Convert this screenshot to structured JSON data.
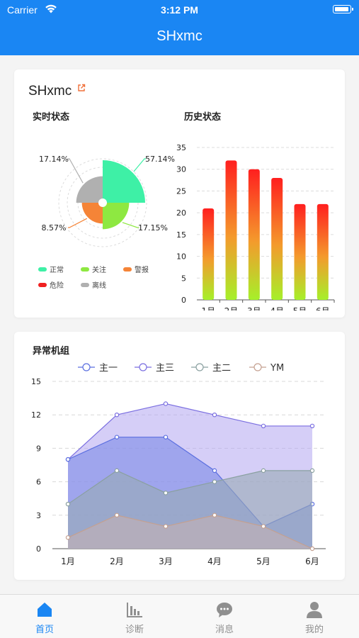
{
  "status_bar": {
    "carrier": "Carrier",
    "time": "3:12 PM"
  },
  "app": {
    "title": "SHxmc"
  },
  "card1": {
    "title": "SHxmc",
    "realtime_title": "实时状态",
    "history_title": "历史状态"
  },
  "card2": {
    "title": "异常机组"
  },
  "chart_data": [
    {
      "type": "pie",
      "title": "实时状态",
      "variant": "rose",
      "slices": [
        {
          "name": "正常",
          "value": 57.14,
          "label": "57.14%",
          "color": "#3ef0a6"
        },
        {
          "name": "关注",
          "value": 17.15,
          "label": "17.15%",
          "color": "#8ee841"
        },
        {
          "name": "警报",
          "value": 8.57,
          "label": "8.57%",
          "color": "#f58437"
        },
        {
          "name": "危险",
          "value": 0,
          "label": "",
          "color": "#f02020"
        },
        {
          "name": "离线",
          "value": 17.14,
          "label": "17.14%",
          "color": "#b0b0b0"
        }
      ],
      "legend": [
        "正常",
        "关注",
        "警报",
        "危险",
        "离线"
      ],
      "legend_position": "bottom"
    },
    {
      "type": "bar",
      "title": "历史状态",
      "categories": [
        "1月",
        "2月",
        "3月",
        "4月",
        "5月",
        "6月"
      ],
      "values": [
        21,
        32,
        30,
        28,
        22,
        22
      ],
      "ylim": [
        0,
        35
      ],
      "yticks": [
        0,
        5,
        10,
        15,
        20,
        25,
        30,
        35
      ],
      "color_top": "#ff1f1f",
      "color_bottom": "#a6f02a",
      "grid": true
    },
    {
      "type": "area",
      "title": "异常机组",
      "categories": [
        "1月",
        "2月",
        "3月",
        "4月",
        "5月",
        "6月"
      ],
      "ylim": [
        0,
        15
      ],
      "yticks": [
        0,
        3,
        6,
        9,
        12,
        15
      ],
      "grid": true,
      "legend_position": "top",
      "series": [
        {
          "name": "主一",
          "values": [
            8,
            10,
            10,
            7,
            2,
            4
          ],
          "color": "#5b6fe0",
          "fill": "#7c8be6"
        },
        {
          "name": "主三",
          "values": [
            8,
            12,
            13,
            12,
            11,
            11
          ],
          "color": "#7a6ee0",
          "fill": "#b2a6f0"
        },
        {
          "name": "主二",
          "values": [
            4,
            7,
            5,
            6,
            7,
            7
          ],
          "color": "#8aa0a0",
          "fill": "#98aab4"
        },
        {
          "name": "YM",
          "values": [
            1,
            3,
            2,
            3,
            2,
            0
          ],
          "color": "#c4a090",
          "fill": "#c8b0b0"
        }
      ]
    }
  ],
  "tabbar": {
    "items": [
      {
        "label": "首页",
        "icon": "home-icon",
        "active": true
      },
      {
        "label": "诊断",
        "icon": "bar-chart-icon",
        "active": false
      },
      {
        "label": "消息",
        "icon": "chat-icon",
        "active": false
      },
      {
        "label": "我的",
        "icon": "person-icon",
        "active": false
      }
    ]
  },
  "colors": {
    "brand": "#1a86f3",
    "tab_inactive": "#8f8f8f"
  }
}
